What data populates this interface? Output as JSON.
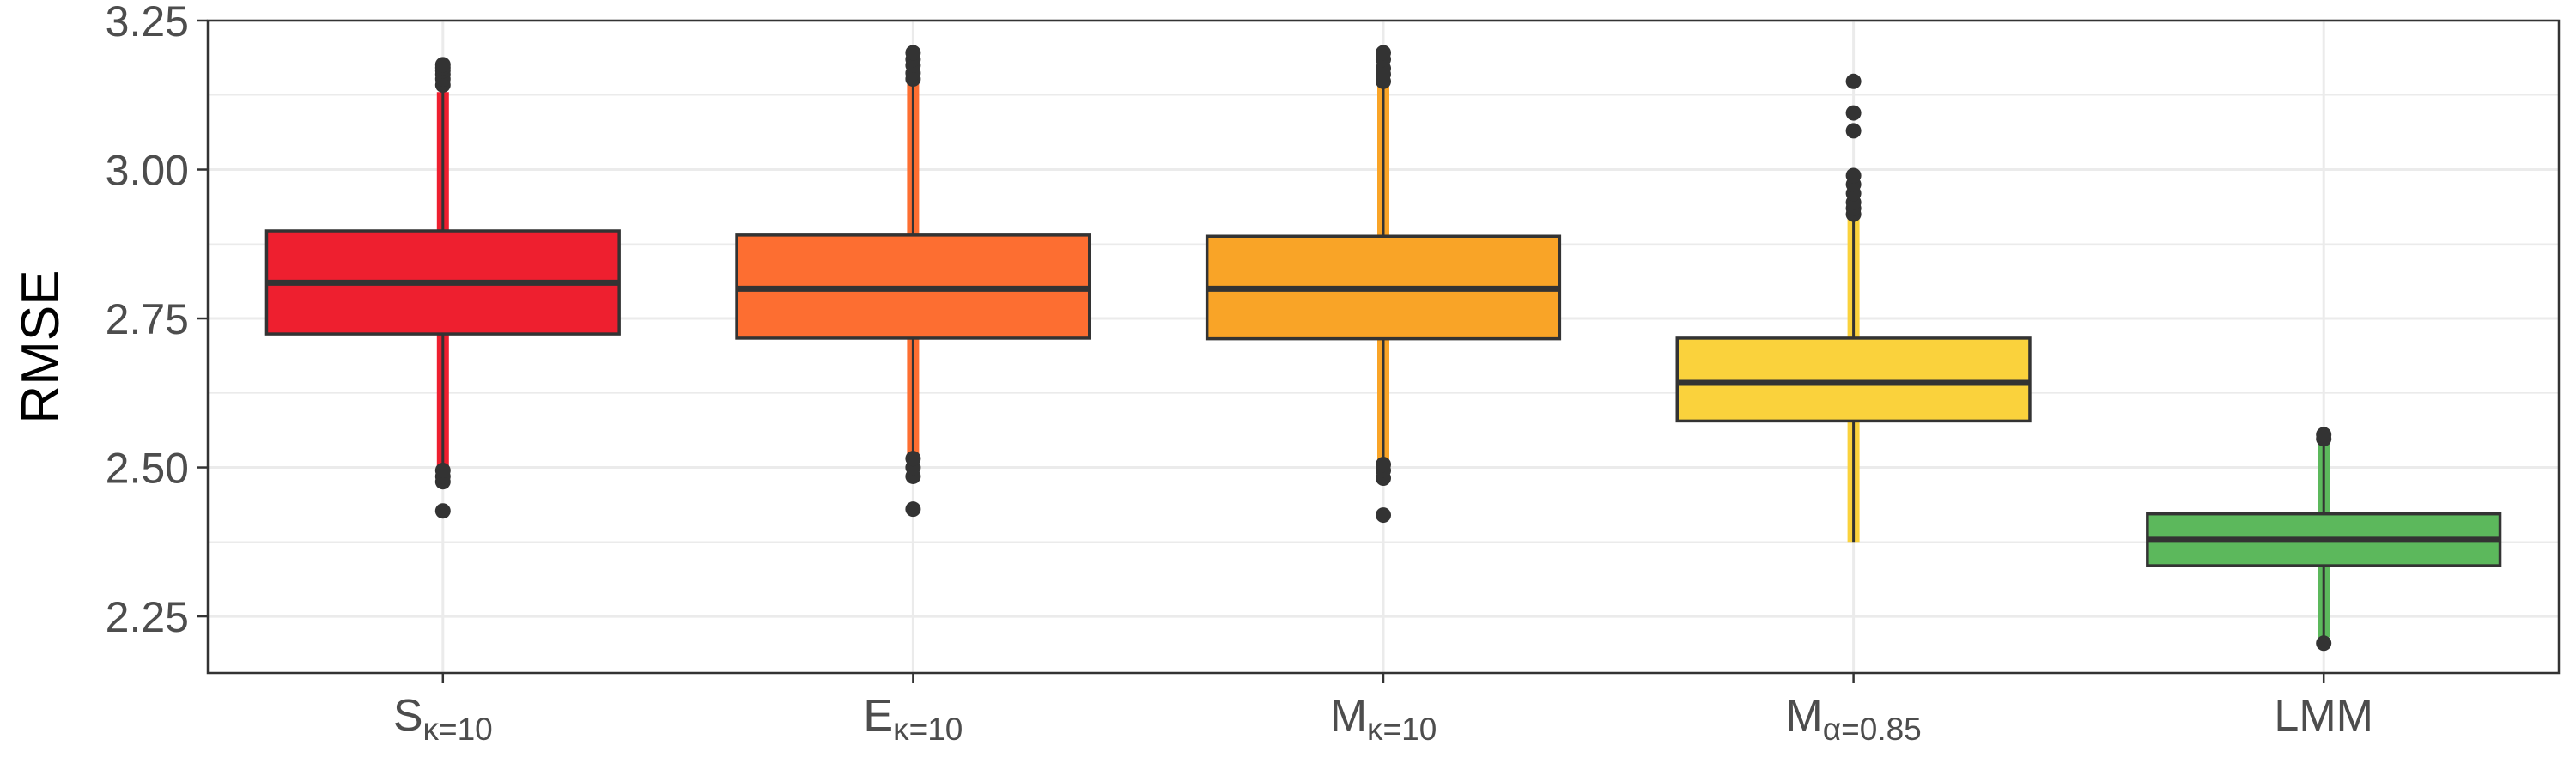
{
  "chart_data": {
    "type": "boxplot",
    "title": "",
    "xlabel": "",
    "ylabel": "RMSE",
    "ylim": [
      2.155,
      3.25
    ],
    "yticks": [
      2.25,
      2.5,
      2.75,
      3.0,
      3.25
    ],
    "ytick_labels": [
      "2.25",
      "2.50",
      "2.75",
      "3.00",
      "3.25"
    ],
    "grid": true,
    "legend": "none",
    "categories": [
      {
        "base": "S",
        "sub": "κ=10"
      },
      {
        "base": "E",
        "sub": "κ=10"
      },
      {
        "base": "M",
        "sub": "κ=10"
      },
      {
        "base": "M",
        "sub": "α=0.85"
      },
      {
        "base": "LMM",
        "sub": ""
      }
    ],
    "series": [
      {
        "q1": 2.724,
        "median": 2.81,
        "q3": 2.897,
        "whisker_low": 2.48,
        "whisker_high": 3.13,
        "color": "#EE1F2F",
        "outliers": [
          2.427,
          2.476,
          2.485,
          2.495,
          3.142,
          3.152,
          3.16,
          3.166,
          3.171,
          3.176
        ]
      },
      {
        "q1": 2.717,
        "median": 2.8,
        "q3": 2.89,
        "whisker_low": 2.49,
        "whisker_high": 3.145,
        "color": "#FD6E31",
        "outliers": [
          2.43,
          2.485,
          2.5,
          2.515,
          3.152,
          3.162,
          3.175,
          3.185,
          3.196
        ]
      },
      {
        "q1": 2.716,
        "median": 2.8,
        "q3": 2.888,
        "whisker_low": 2.49,
        "whisker_high": 3.14,
        "color": "#F9A427",
        "outliers": [
          2.42,
          2.482,
          2.495,
          2.505,
          3.148,
          3.16,
          3.17,
          3.185,
          3.196
        ]
      },
      {
        "q1": 2.578,
        "median": 2.642,
        "q3": 2.717,
        "whisker_low": 2.375,
        "whisker_high": 2.92,
        "color": "#FAD23C",
        "outliers": [
          2.925,
          2.935,
          2.945,
          2.96,
          2.975,
          2.99,
          3.065,
          3.095,
          3.148
        ]
      },
      {
        "q1": 2.335,
        "median": 2.38,
        "q3": 2.422,
        "whisker_low": 2.215,
        "whisker_high": 2.54,
        "color": "#5CB85C",
        "outliers": [
          2.205,
          2.548,
          2.555
        ]
      }
    ]
  }
}
